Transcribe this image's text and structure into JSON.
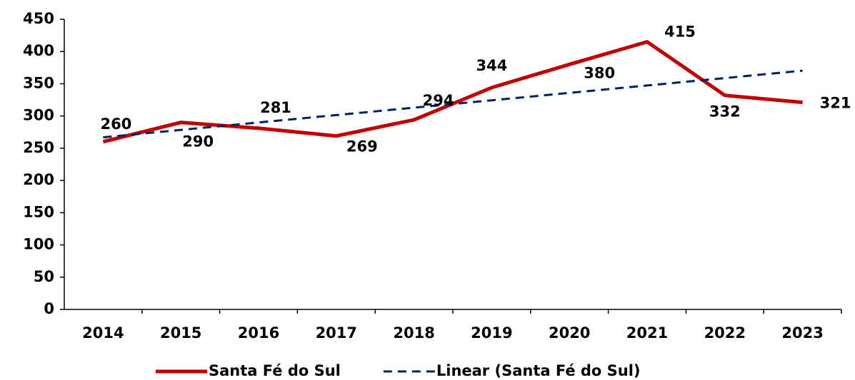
{
  "chart_data": {
    "type": "line",
    "categories": [
      "2014",
      "2015",
      "2016",
      "2017",
      "2018",
      "2019",
      "2020",
      "2021",
      "2022",
      "2023"
    ],
    "series": [
      {
        "name": "Santa Fé do Sul",
        "color": "#c00000",
        "values": [
          260,
          290,
          281,
          269,
          294,
          344,
          380,
          415,
          332,
          321
        ]
      },
      {
        "name": "Linear (Santa Fé do Sul)",
        "color": "#002060",
        "dashed": true,
        "values": [
          266.9,
          278.4,
          289.9,
          301.4,
          312.9,
          324.3,
          335.8,
          347.3,
          358.8,
          370.3
        ]
      }
    ],
    "ylim": [
      0,
      450
    ],
    "yticks": [
      0,
      50,
      100,
      150,
      200,
      250,
      300,
      350,
      400,
      450
    ],
    "legend": "bottom"
  }
}
